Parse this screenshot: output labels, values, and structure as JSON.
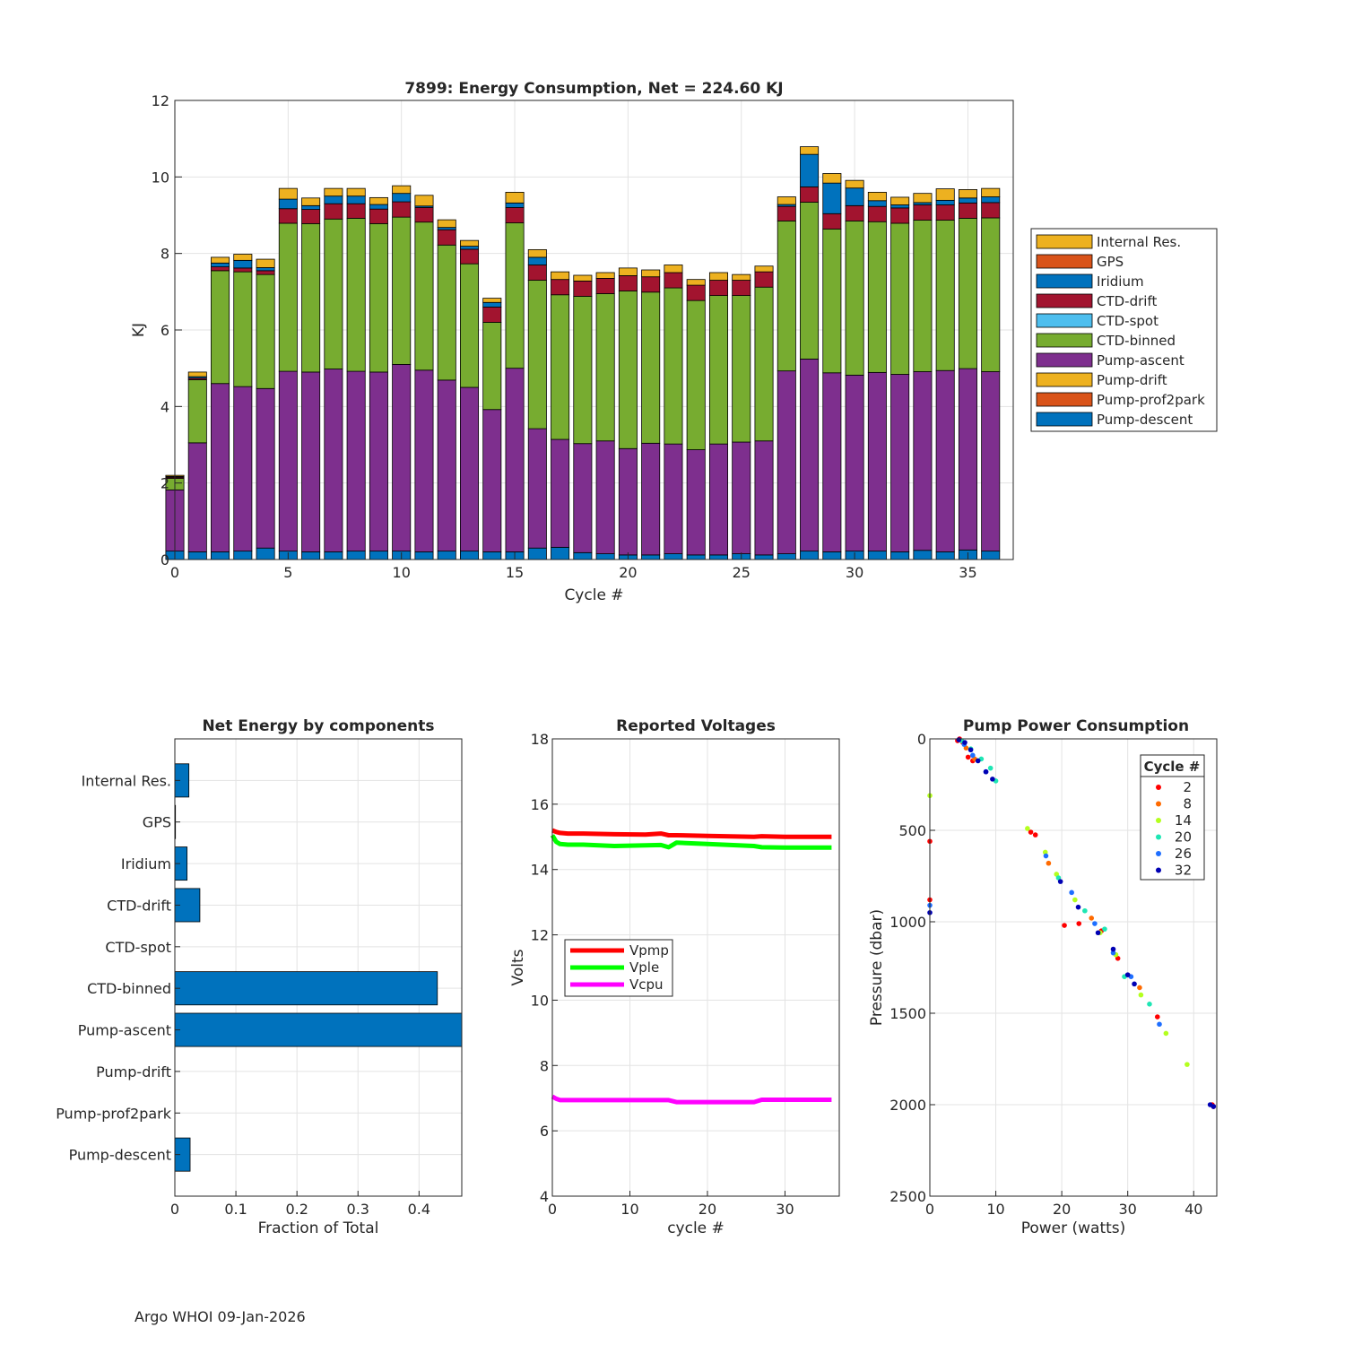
{
  "footer": "Argo WHOI 09-Jan-2026",
  "chart_data": [
    {
      "type": "bar",
      "stacked": true,
      "title": "7899: Energy Consumption,  Net = 224.60 KJ",
      "xlabel": "Cycle #",
      "ylabel": "KJ",
      "xlim": [
        0,
        37
      ],
      "ylim": [
        0,
        12
      ],
      "xticks": [
        0,
        5,
        10,
        15,
        20,
        25,
        30,
        35
      ],
      "yticks": [
        0,
        2,
        4,
        6,
        8,
        10,
        12
      ],
      "legend_position": "right",
      "legend": [
        "Internal Res.",
        "GPS",
        "Iridium",
        "CTD-drift",
        "CTD-spot",
        "CTD-binned",
        "Pump-ascent",
        "Pump-drift",
        "Pump-prof2park",
        "Pump-descent"
      ],
      "categories": [
        0,
        1,
        2,
        3,
        4,
        5,
        6,
        7,
        8,
        9,
        10,
        11,
        12,
        13,
        14,
        15,
        16,
        17,
        18,
        19,
        20,
        21,
        22,
        23,
        24,
        25,
        26,
        27,
        28,
        29,
        30,
        31,
        32,
        33,
        34,
        35,
        36
      ],
      "series": [
        {
          "name": "Pump-descent",
          "color": "#0072BD",
          "values": [
            0.22,
            0.2,
            0.2,
            0.22,
            0.3,
            0.22,
            0.2,
            0.2,
            0.22,
            0.22,
            0.22,
            0.2,
            0.22,
            0.22,
            0.2,
            0.2,
            0.3,
            0.32,
            0.18,
            0.15,
            0.12,
            0.12,
            0.15,
            0.12,
            0.12,
            0.15,
            0.12,
            0.15,
            0.22,
            0.2,
            0.22,
            0.22,
            0.2,
            0.24,
            0.2,
            0.25,
            0.22
          ]
        },
        {
          "name": "Pump-prof2park",
          "color": "#D95319",
          "values": [
            0,
            0,
            0,
            0,
            0,
            0,
            0,
            0,
            0,
            0,
            0,
            0,
            0,
            0,
            0,
            0,
            0,
            0,
            0,
            0,
            0,
            0,
            0,
            0,
            0,
            0,
            0,
            0,
            0,
            0,
            0,
            0,
            0,
            0,
            0,
            0,
            0
          ]
        },
        {
          "name": "Pump-drift",
          "color": "#EDB120",
          "values": [
            0,
            0,
            0,
            0,
            0,
            0,
            0,
            0,
            0,
            0,
            0,
            0,
            0,
            0,
            0,
            0,
            0,
            0,
            0,
            0,
            0,
            0,
            0,
            0,
            0,
            0,
            0,
            0,
            0,
            0,
            0,
            0,
            0,
            0,
            0,
            0,
            0
          ]
        },
        {
          "name": "Pump-ascent",
          "color": "#7E2F8E",
          "values": [
            1.6,
            2.85,
            4.4,
            4.3,
            4.17,
            4.7,
            4.7,
            4.78,
            4.7,
            4.68,
            4.88,
            4.75,
            4.47,
            4.28,
            3.72,
            4.8,
            3.12,
            2.82,
            2.85,
            2.95,
            2.78,
            2.92,
            2.87,
            2.75,
            2.9,
            2.92,
            2.98,
            4.78,
            5.02,
            4.68,
            4.6,
            4.67,
            4.64,
            4.67,
            4.74,
            4.74,
            4.69
          ]
        },
        {
          "name": "CTD-binned",
          "color": "#77AC30",
          "values": [
            0.3,
            1.65,
            2.95,
            3.0,
            2.98,
            3.87,
            3.88,
            3.92,
            4.0,
            3.88,
            3.85,
            3.87,
            3.53,
            3.23,
            2.28,
            3.8,
            3.88,
            3.78,
            3.85,
            3.85,
            4.12,
            3.95,
            4.08,
            3.9,
            3.88,
            3.83,
            4.02,
            3.92,
            4.1,
            3.76,
            4.03,
            3.94,
            3.95,
            3.96,
            3.93,
            3.93,
            4.02
          ]
        },
        {
          "name": "CTD-spot",
          "color": "#4DBEEE",
          "values": [
            0,
            0,
            0,
            0,
            0,
            0,
            0,
            0,
            0,
            0,
            0,
            0,
            0,
            0,
            0,
            0,
            0,
            0,
            0,
            0,
            0,
            0,
            0,
            0,
            0,
            0,
            0,
            0,
            0,
            0,
            0,
            0,
            0,
            0,
            0,
            0,
            0
          ]
        },
        {
          "name": "CTD-drift",
          "color": "#A2142F",
          "values": [
            0.03,
            0.04,
            0.1,
            0.1,
            0.1,
            0.38,
            0.37,
            0.4,
            0.38,
            0.38,
            0.4,
            0.38,
            0.4,
            0.38,
            0.4,
            0.4,
            0.4,
            0.4,
            0.4,
            0.4,
            0.4,
            0.4,
            0.4,
            0.4,
            0.4,
            0.4,
            0.4,
            0.38,
            0.4,
            0.4,
            0.4,
            0.4,
            0.4,
            0.4,
            0.4,
            0.4,
            0.4
          ]
        },
        {
          "name": "Iridium",
          "color": "#0072BD",
          "values": [
            0.02,
            0.04,
            0.1,
            0.2,
            0.08,
            0.25,
            0.1,
            0.2,
            0.2,
            0.12,
            0.22,
            0.04,
            0.06,
            0.08,
            0.12,
            0.12,
            0.2,
            0.0,
            0.0,
            0.0,
            0.0,
            0.0,
            0.0,
            0.0,
            0.0,
            0.0,
            0.0,
            0.05,
            0.85,
            0.8,
            0.46,
            0.15,
            0.08,
            0.06,
            0.12,
            0.13,
            0.15
          ]
        },
        {
          "name": "GPS",
          "color": "#D95319",
          "values": [
            0,
            0,
            0,
            0,
            0,
            0,
            0,
            0,
            0,
            0,
            0,
            0,
            0,
            0,
            0,
            0,
            0,
            0,
            0,
            0,
            0,
            0,
            0,
            0,
            0,
            0,
            0,
            0,
            0,
            0,
            0,
            0,
            0,
            0,
            0,
            0,
            0
          ]
        },
        {
          "name": "Internal Res.",
          "color": "#EDB120",
          "values": [
            0.03,
            0.12,
            0.15,
            0.16,
            0.22,
            0.28,
            0.2,
            0.2,
            0.2,
            0.18,
            0.2,
            0.28,
            0.2,
            0.15,
            0.11,
            0.28,
            0.2,
            0.2,
            0.15,
            0.15,
            0.2,
            0.18,
            0.2,
            0.15,
            0.2,
            0.15,
            0.15,
            0.2,
            0.2,
            0.25,
            0.2,
            0.22,
            0.2,
            0.24,
            0.3,
            0.22,
            0.22
          ]
        }
      ]
    },
    {
      "type": "bar",
      "orientation": "horizontal",
      "title": "Net Energy by components",
      "xlabel": "Fraction of Total",
      "xlim": [
        0,
        0.47
      ],
      "xticks": [
        0,
        0.1,
        0.2,
        0.3,
        0.4
      ],
      "xtick_labels": [
        "0",
        "0.1",
        "0.2",
        "0.3",
        "0.4"
      ],
      "color": "#0072BD",
      "categories": [
        "Internal Res.",
        "GPS",
        "Iridium",
        "CTD-drift",
        "CTD-spot",
        "CTD-binned",
        "Pump-ascent",
        "Pump-drift",
        "Pump-prof2park",
        "Pump-descent"
      ],
      "values": [
        0.023,
        0.001,
        0.02,
        0.041,
        0,
        0.43,
        0.47,
        0,
        0,
        0.025
      ]
    },
    {
      "type": "line",
      "title": "Reported Voltages",
      "xlabel": "cycle #",
      "ylabel": "Volts",
      "xlim": [
        0,
        37
      ],
      "ylim": [
        4,
        18
      ],
      "xticks": [
        0,
        10,
        20,
        30
      ],
      "yticks": [
        4,
        6,
        8,
        10,
        12,
        14,
        16,
        18
      ],
      "legend_position": "middle-left",
      "series": [
        {
          "name": "Vpmp",
          "color": "#FF0000",
          "x": [
            0,
            0.5,
            1,
            2,
            4,
            8,
            12,
            14,
            15,
            16,
            20,
            26,
            27,
            30,
            36
          ],
          "y": [
            15.2,
            15.15,
            15.12,
            15.1,
            15.1,
            15.08,
            15.07,
            15.1,
            15.05,
            15.05,
            15.03,
            15.0,
            15.02,
            15.0,
            15.0
          ]
        },
        {
          "name": "Vple",
          "color": "#00FF00",
          "x": [
            0,
            0.5,
            1,
            2,
            4,
            8,
            12,
            14,
            15,
            16,
            20,
            26,
            27,
            30,
            36
          ],
          "y": [
            15.05,
            14.85,
            14.78,
            14.76,
            14.76,
            14.72,
            14.74,
            14.75,
            14.68,
            14.82,
            14.78,
            14.72,
            14.68,
            14.67,
            14.67
          ]
        },
        {
          "name": "Vcpu",
          "color": "#FF00FF",
          "x": [
            0,
            0.5,
            1,
            2,
            8,
            15,
            16,
            26,
            27,
            30,
            36
          ],
          "y": [
            7.05,
            6.98,
            6.94,
            6.94,
            6.94,
            6.94,
            6.88,
            6.88,
            6.95,
            6.95,
            6.95
          ]
        }
      ]
    },
    {
      "type": "scatter",
      "title": "Pump Power Consumption",
      "xlabel": "Power (watts)",
      "ylabel": "Pressure (dbar)",
      "xlim": [
        0,
        43.5
      ],
      "ylim": [
        0,
        2500
      ],
      "y_reversed": true,
      "xticks": [
        0,
        10,
        20,
        30,
        40
      ],
      "yticks": [
        0,
        500,
        1000,
        1500,
        2000,
        2500
      ],
      "legend_title": "Cycle #",
      "legend_position": "top-right",
      "series": [
        {
          "name": "2",
          "color": "#FF0000",
          "x": [
            4.5,
            5,
            4.2,
            5.8,
            6.5,
            0,
            0,
            15.3,
            16,
            20.4,
            22.6,
            26,
            28.5,
            34.5,
            42.8,
            43
          ],
          "y": [
            0,
            20,
            10,
            100,
            120,
            560,
            880,
            510,
            525,
            1020,
            1010,
            1050,
            1200,
            1520,
            2000,
            2010
          ]
        },
        {
          "name": "8",
          "color": "#FF6A00",
          "x": [
            5.5,
            6.8,
            18,
            24.5,
            31.8
          ],
          "y": [
            50,
            110,
            680,
            980,
            1360
          ]
        },
        {
          "name": "14",
          "color": "#B4FF1E",
          "x": [
            0,
            14.8,
            17.5,
            19.2,
            22,
            25.8,
            28.2,
            32,
            35.8,
            39
          ],
          "y": [
            310,
            490,
            620,
            740,
            880,
            1060,
            1180,
            1400,
            1610,
            1780
          ]
        },
        {
          "name": "20",
          "color": "#1EE6B4",
          "x": [
            4.8,
            6.2,
            7.8,
            9.2,
            10,
            19.5,
            23.5,
            26.5,
            29.5,
            33.3
          ],
          "y": [
            10,
            55,
            110,
            160,
            230,
            760,
            940,
            1040,
            1300,
            1450
          ]
        },
        {
          "name": "26",
          "color": "#1E6EFF",
          "x": [
            0,
            5.2,
            6.5,
            8.5,
            17.6,
            21.5,
            25,
            27.8,
            30.5,
            34.8
          ],
          "y": [
            910,
            30,
            90,
            180,
            640,
            840,
            1010,
            1170,
            1300,
            1560
          ]
        },
        {
          "name": "32",
          "color": "#0000B4",
          "x": [
            0,
            4.4,
            5.3,
            6.2,
            7.3,
            8.5,
            9.5,
            19.8,
            22.5,
            25.5,
            27.8,
            30,
            31,
            42.5,
            43
          ],
          "y": [
            950,
            5,
            20,
            60,
            120,
            180,
            220,
            780,
            920,
            1060,
            1150,
            1290,
            1340,
            2000,
            2010
          ]
        }
      ]
    }
  ]
}
